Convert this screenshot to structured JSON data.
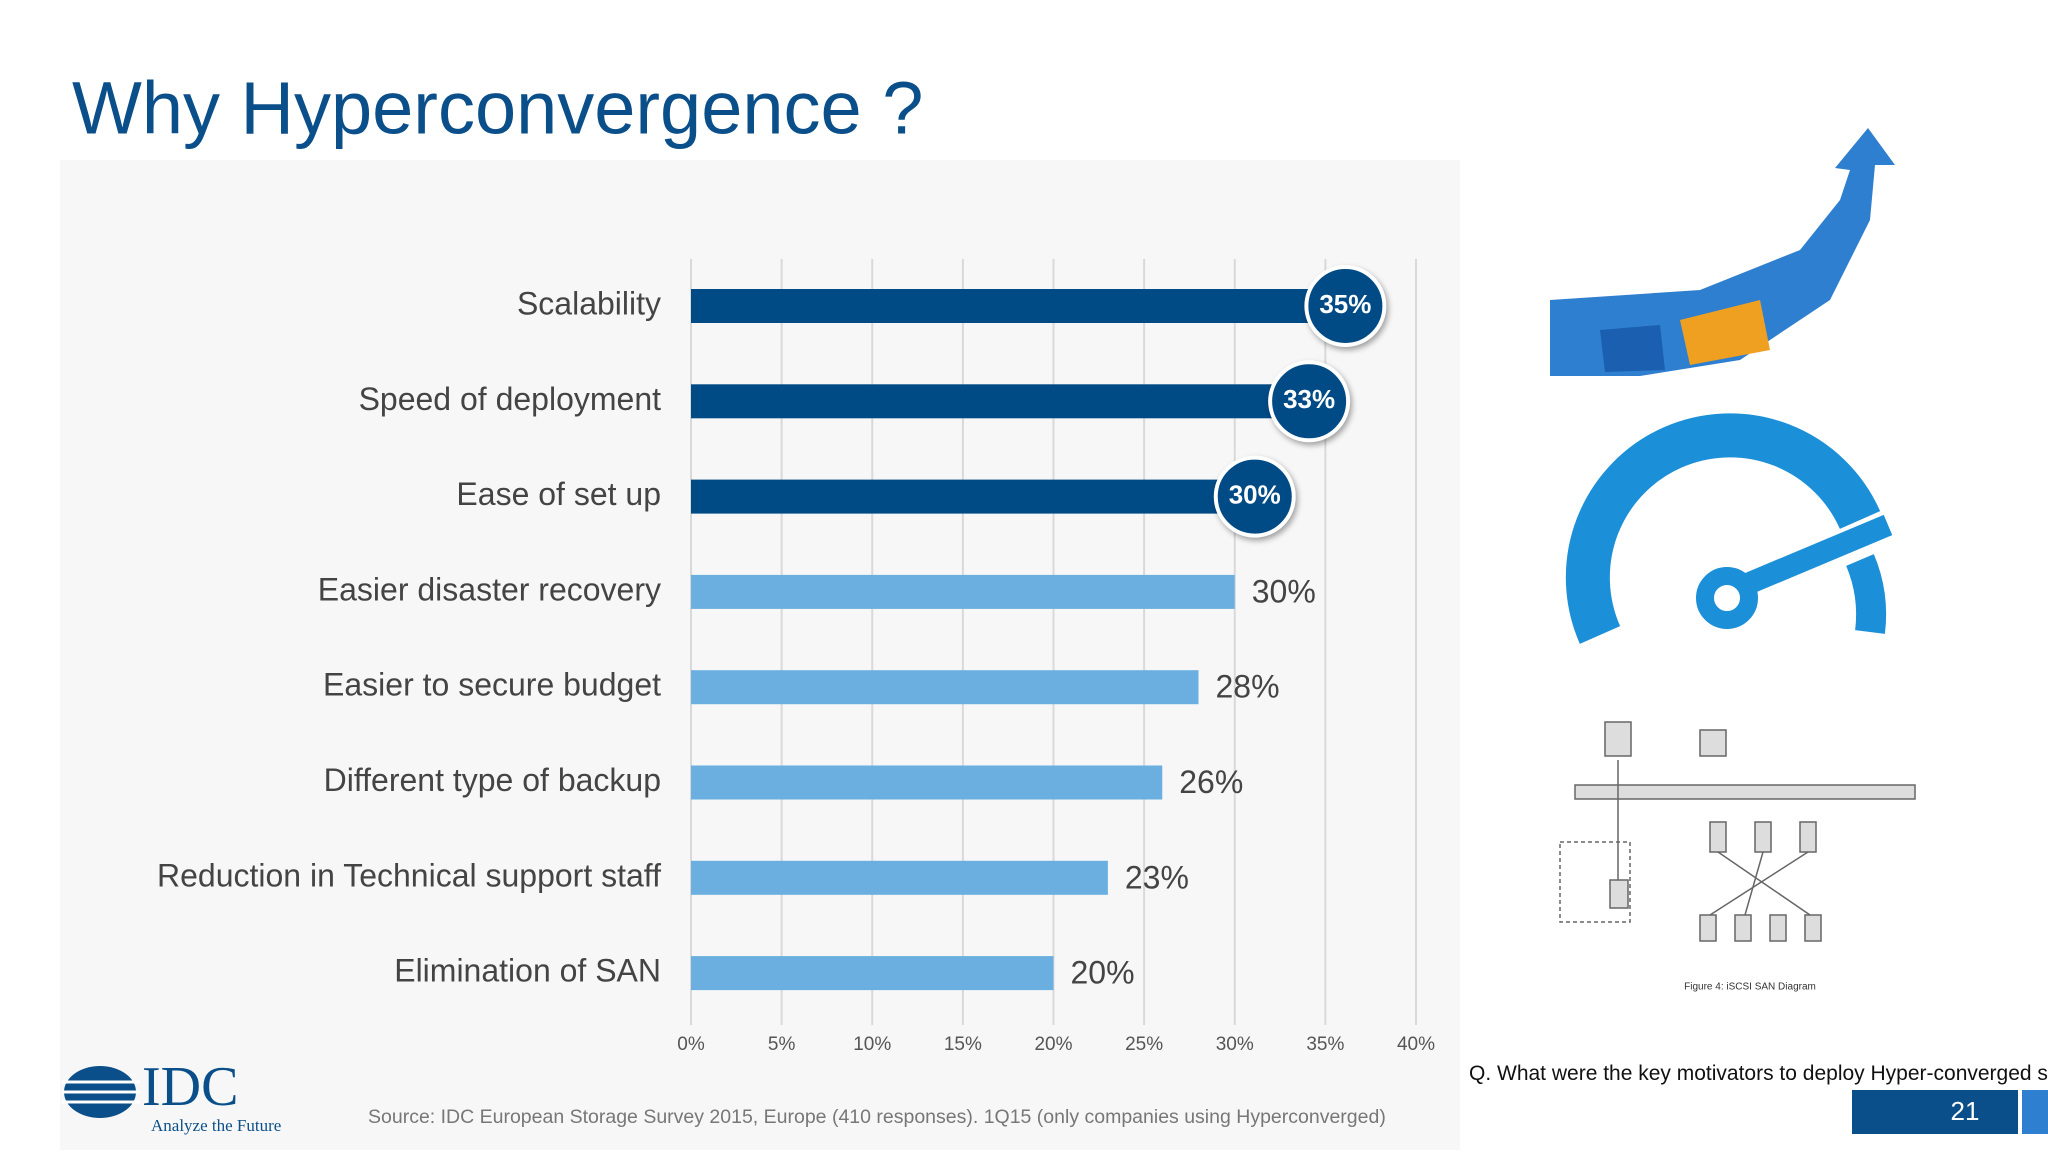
{
  "chart_data": {
    "type": "bar",
    "orientation": "horizontal",
    "title": "Why Hyperconvergence ?",
    "categories": [
      "Scalability",
      "Speed of deployment",
      "Ease of set up",
      "Easier disaster recovery",
      "Easier to secure budget",
      "Different type of backup",
      "Reduction in Technical support staff",
      "Elimination of SAN"
    ],
    "values": [
      35,
      33,
      30,
      30,
      28,
      26,
      23,
      20
    ],
    "value_labels": [
      "35%",
      "33%",
      "30%",
      "30%",
      "28%",
      "26%",
      "23%",
      "20%"
    ],
    "colors": [
      "#004a85",
      "#004a85",
      "#004a85",
      "#6aafe0",
      "#6aafe0",
      "#6aafe0",
      "#6aafe0",
      "#6aafe0"
    ],
    "highlight_color": "#004a85",
    "xlim": [
      0,
      40
    ],
    "xticks": [
      {
        "value": 0,
        "label": "0%"
      },
      {
        "value": 5,
        "label": "5%"
      },
      {
        "value": 10,
        "label": "10%"
      },
      {
        "value": 15,
        "label": "15%"
      },
      {
        "value": 20,
        "label": "20%"
      },
      {
        "value": 25,
        "label": "25%"
      },
      {
        "value": 30,
        "label": "30%"
      },
      {
        "value": 35,
        "label": "35%"
      },
      {
        "value": 40,
        "label": "40%"
      }
    ],
    "grid": true,
    "source": "Source: IDC European Storage Survey 2015, Europe (410 responses). 1Q15 (only companies using Hyperconverged)"
  },
  "question": "Q. What were the key motivators to deploy Hyper-converged systems?",
  "page_number": "21",
  "logo": {
    "name": "IDC",
    "tagline": "Analyze the Future"
  },
  "diagram_caption": "Figure 4:   iSCSI SAN Diagram"
}
